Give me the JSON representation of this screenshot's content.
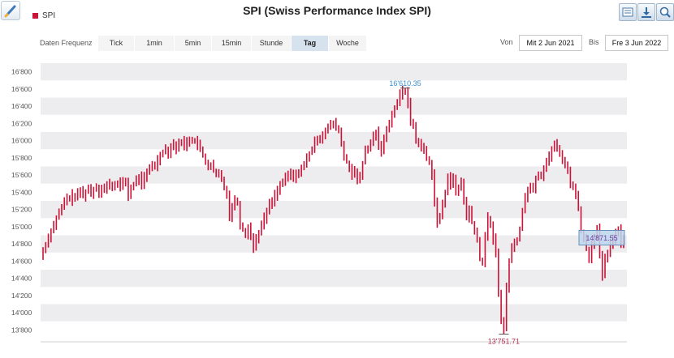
{
  "legend": {
    "label": "SPI",
    "color": "#cc1236"
  },
  "title": "SPI (Swiss Performance Index SPI)",
  "toolbar": {
    "icons": [
      "chart-settings-icon",
      "download-icon",
      "zoom-icon"
    ]
  },
  "frequency": {
    "label": "Daten Frequenz",
    "options": [
      "Tick",
      "1min",
      "5min",
      "15min",
      "Stunde",
      "Tag",
      "Woche"
    ],
    "selected": "Tag"
  },
  "range": {
    "from_label": "Von",
    "from": "Mit 2 Jun 2021",
    "to_label": "Bis",
    "to": "Fre 3 Jun 2022"
  },
  "chart_data": {
    "type": "ohlc",
    "series": [
      {
        "name": "SPI",
        "color": "#cc1236"
      }
    ],
    "ylim": [
      13700,
      16900
    ],
    "yticks": [
      "13'800",
      "14'000",
      "14'200",
      "14'400",
      "14'600",
      "14'800",
      "15'000",
      "15'200",
      "15'400",
      "15'600",
      "15'800",
      "16'000",
      "16'200",
      "16'400",
      "16'600",
      "16'800"
    ],
    "ytick_values": [
      13800,
      14000,
      14200,
      14400,
      14600,
      14800,
      15000,
      15200,
      15400,
      15600,
      15800,
      16000,
      16200,
      16400,
      16600,
      16800
    ],
    "max_label": "16'610.35",
    "min_label": "13'751.71",
    "last_label": "14'871.55",
    "max_value": 16610.35,
    "min_value": 13751.71,
    "last_value": 14871.55,
    "grid": "horizontal bands",
    "closes": [
      14720,
      14800,
      14880,
      14960,
      15020,
      15100,
      15160,
      15220,
      15290,
      15340,
      15310,
      15370,
      15330,
      15380,
      15420,
      15360,
      15410,
      15450,
      15380,
      15440,
      15470,
      15400,
      15460,
      15420,
      15480,
      15500,
      15440,
      15490,
      15520,
      15460,
      15510,
      15530,
      15360,
      15450,
      15490,
      15540,
      15580,
      15500,
      15570,
      15620,
      15680,
      15730,
      15700,
      15780,
      15840,
      15880,
      15910,
      15860,
      15930,
      15970,
      15900,
      15960,
      16000,
      15940,
      15990,
      16020,
      15980,
      16010,
      15950,
      15890,
      15820,
      15760,
      15690,
      15720,
      15650,
      15590,
      15620,
      15540,
      15460,
      15380,
      15120,
      15240,
      15310,
      15280,
      15030,
      14960,
      14900,
      15010,
      14880,
      14760,
      14870,
      14940,
      15020,
      15100,
      15180,
      15260,
      15300,
      15370,
      15430,
      15480,
      15520,
      15560,
      15600,
      15620,
      15560,
      15600,
      15650,
      15680,
      15710,
      15800,
      15850,
      15900,
      15980,
      16040,
      16020,
      16080,
      16120,
      16150,
      16180,
      16200,
      16160,
      16110,
      15960,
      15810,
      15750,
      15690,
      15590,
      15640,
      15520,
      15600,
      15740,
      15880,
      15900,
      15980,
      16050,
      16100,
      15960,
      15880,
      16010,
      16150,
      16220,
      16300,
      16380,
      16450,
      16530,
      16580,
      16600,
      16430,
      16220,
      16170,
      16010,
      15960,
      15930,
      15890,
      15800,
      15740,
      15610,
      15300,
      15050,
      15120,
      15250,
      15400,
      15600,
      15500,
      15560,
      15380,
      15450,
      15530,
      15300,
      15100,
      15200,
      15050,
      14950,
      14830,
      14620,
      14580,
      14900,
      15100,
      15000,
      14860,
      14700,
      14250,
      13900,
      13820,
      14300,
      14600,
      14760,
      14810,
      14860,
      14980,
      15200,
      15350,
      15420,
      15490,
      15420,
      15570,
      15620,
      15590,
      15680,
      15760,
      15810,
      15900,
      15960,
      15900,
      15850,
      15790,
      15720,
      15640,
      15500,
      15480,
      15360,
      15200,
      14950,
      14860,
      14750,
      14620,
      14800,
      14900,
      14980,
      14650,
      14430,
      14620,
      14700,
      14780,
      14850,
      14940,
      14980,
      14800,
      14870
    ]
  }
}
